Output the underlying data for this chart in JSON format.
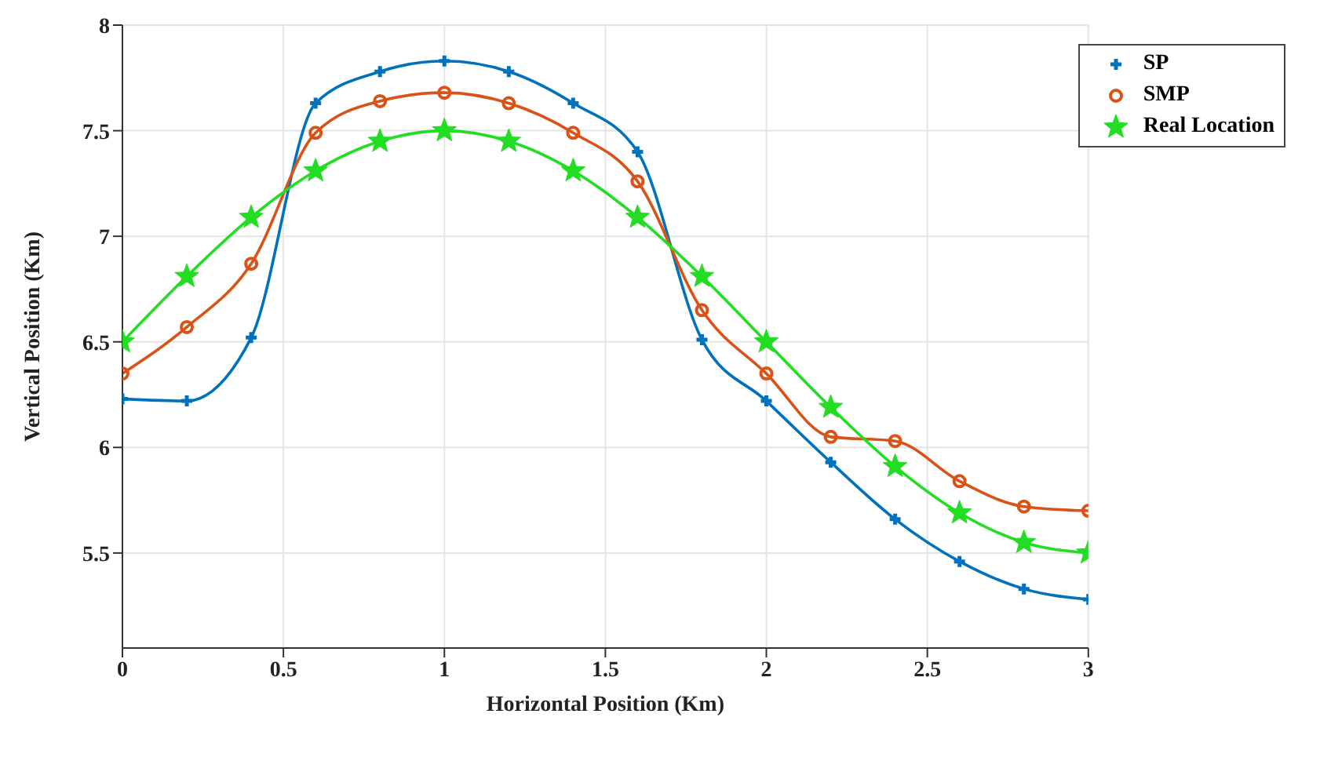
{
  "chart_data": {
    "type": "line",
    "xlabel": "Horizontal Position (Km)",
    "ylabel": "Vertical Position (Km)",
    "x": [
      0,
      0.2,
      0.4,
      0.6,
      0.8,
      1,
      1.2,
      1.4,
      1.6,
      1.8,
      2,
      2.2,
      2.4,
      2.6,
      2.8,
      3
    ],
    "series": [
      {
        "name": "SP",
        "color": "#0072bd",
        "marker": "cross",
        "values": [
          6.23,
          6.22,
          6.52,
          7.63,
          7.78,
          7.83,
          7.78,
          7.63,
          7.4,
          6.51,
          6.22,
          5.93,
          5.66,
          5.46,
          5.33,
          5.28
        ]
      },
      {
        "name": "SMP",
        "color": "#d95319",
        "marker": "circle",
        "values": [
          6.35,
          6.57,
          6.87,
          7.49,
          7.64,
          7.68,
          7.63,
          7.49,
          7.26,
          6.65,
          6.35,
          6.05,
          6.03,
          5.84,
          5.72,
          5.7
        ]
      },
      {
        "name": "Real Location",
        "color": "#22dd22",
        "marker": "star",
        "values": [
          6.5,
          6.81,
          7.09,
          7.31,
          7.45,
          7.5,
          7.45,
          7.31,
          7.09,
          6.81,
          6.5,
          6.19,
          5.91,
          5.69,
          5.55,
          5.5
        ]
      }
    ],
    "xlim": [
      0,
      3
    ],
    "xticks": [
      0,
      0.5,
      1,
      1.5,
      2,
      2.5,
      3
    ],
    "ylim": [
      5.05,
      8
    ],
    "yticks": [
      5.5,
      6,
      6.5,
      7,
      7.5,
      8
    ],
    "grid": true,
    "legend": "top right",
    "line_style": "solid"
  }
}
